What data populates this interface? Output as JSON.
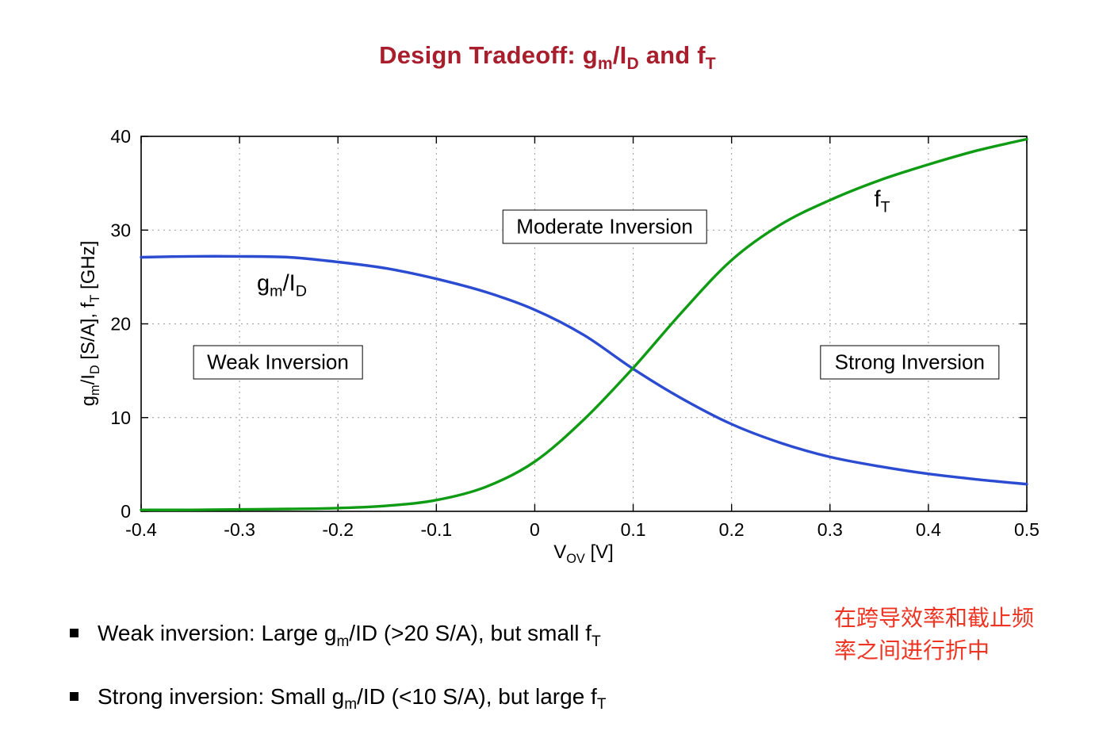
{
  "colors": {
    "title": "#a81e2c",
    "note": "#ee3524",
    "gm_id_curve": "#2b4bd0",
    "ft_curve": "#0f9b13",
    "grid": "#9a9a9a",
    "axis": "#000000"
  },
  "title": {
    "segments": [
      {
        "t": "Design Tradeoff: g"
      },
      {
        "t": "m",
        "sub": true
      },
      {
        "t": "/I"
      },
      {
        "t": "D",
        "sub": true
      },
      {
        "t": " and f"
      },
      {
        "t": "T",
        "sub": true
      }
    ]
  },
  "chart_data": {
    "type": "line",
    "x": [
      -0.4,
      -0.35,
      -0.3,
      -0.25,
      -0.2,
      -0.15,
      -0.1,
      -0.05,
      0.0,
      0.05,
      0.1,
      0.15,
      0.2,
      0.25,
      0.3,
      0.35,
      0.4,
      0.45,
      0.5
    ],
    "series": [
      {
        "id": "gm-id",
        "name": "gm/ID [S/A]",
        "color_key": "gm_id_curve",
        "values": [
          27.1,
          27.2,
          27.2,
          27.1,
          26.6,
          25.9,
          24.8,
          23.4,
          21.5,
          18.8,
          15.2,
          12.0,
          9.3,
          7.3,
          5.8,
          4.8,
          4.0,
          3.4,
          2.9
        ]
      },
      {
        "id": "ft",
        "name": "fT [GHz]",
        "color_key": "ft_curve",
        "values": [
          0.15,
          0.15,
          0.2,
          0.25,
          0.35,
          0.6,
          1.2,
          2.6,
          5.3,
          9.8,
          15.3,
          21.3,
          26.8,
          30.6,
          33.2,
          35.3,
          37.0,
          38.5,
          39.7
        ]
      }
    ],
    "xlim": [
      -0.4,
      0.5
    ],
    "ylim": [
      0,
      40
    ],
    "xticks": [
      -0.4,
      -0.3,
      -0.2,
      -0.1,
      0,
      0.1,
      0.2,
      0.3,
      0.4,
      0.5
    ],
    "xtick_labels": [
      "-0.4",
      "-0.3",
      "-0.2",
      "-0.1",
      "0",
      "0.1",
      "0.2",
      "0.3",
      "0.4",
      "0.5"
    ],
    "yticks": [
      0,
      10,
      20,
      30,
      40
    ],
    "ytick_labels": [
      "0",
      "10",
      "20",
      "30",
      "40"
    ],
    "grid": true,
    "legend": "none",
    "xlabel_segments": [
      {
        "t": "V"
      },
      {
        "t": "OV",
        "sub": true
      },
      {
        "t": " [V]"
      }
    ],
    "ylabel_segments": [
      {
        "t": "g"
      },
      {
        "t": "m",
        "sub": true
      },
      {
        "t": "/I"
      },
      {
        "t": "D",
        "sub": true
      },
      {
        "t": " [S/A], f"
      },
      {
        "t": "T",
        "sub": true
      },
      {
        "t": " [GHz]"
      }
    ],
    "annotations": {
      "boxes": [
        {
          "label": "Moderate Inversion",
          "x": 0.071,
          "y": 30.4
        },
        {
          "label": "Weak Inversion",
          "x": -0.261,
          "y": 15.9
        },
        {
          "label": "Strong Inversion",
          "x": 0.381,
          "y": 15.9
        }
      ],
      "curve_labels": [
        {
          "segments": [
            {
              "t": "g"
            },
            {
              "t": "m",
              "sub": true
            },
            {
              "t": "/I"
            },
            {
              "t": "D",
              "sub": true
            }
          ],
          "x": -0.257,
          "y": 24.3
        },
        {
          "segments": [
            {
              "t": "f"
            },
            {
              "t": "T",
              "sub": true
            }
          ],
          "x": 0.353,
          "y": 33.2
        }
      ]
    }
  },
  "bullets": [
    {
      "segments": [
        {
          "t": "Weak inversion: Large g"
        },
        {
          "t": "m",
          "sub": true
        },
        {
          "t": "/ID (>20 S/A), but small f"
        },
        {
          "t": "T",
          "sub": true
        }
      ]
    },
    {
      "segments": [
        {
          "t": "Strong inversion: Small g"
        },
        {
          "t": "m",
          "sub": true
        },
        {
          "t": "/ID (<10 S/A), but large f"
        },
        {
          "t": "T",
          "sub": true
        }
      ]
    }
  ],
  "note": {
    "lines": [
      "在跨导效率和截止频",
      "率之间进行折中"
    ]
  }
}
